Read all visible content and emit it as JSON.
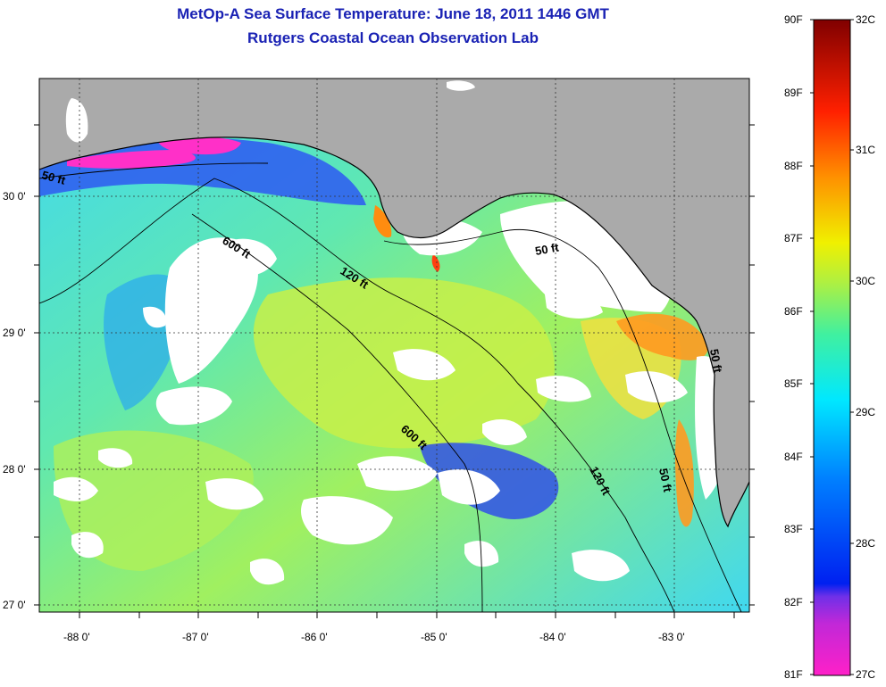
{
  "header": {
    "title": "MetOp-A Sea Surface Temperature:  June 18, 2011 1446 GMT",
    "subtitle": "Rutgers Coastal Ocean Observation Lab"
  },
  "map": {
    "lat_ticks": [
      "30 0'",
      "29 0'",
      "28 0'",
      "27 0'"
    ],
    "lon_ticks": [
      "-88 0'",
      "-87 0'",
      "-86 0'",
      "-85 0'",
      "-84 0'",
      "-83 0'"
    ],
    "lon_range": [
      -88.33,
      -82.5
    ],
    "lat_range": [
      26.95,
      30.85
    ],
    "contour_labels": [
      "50 ft",
      "600 ft",
      "120 ft",
      "50 ft",
      "600 ft",
      "120 ft",
      "50 ft",
      "50 ft"
    ],
    "colors": {
      "land": "#aaaaaa",
      "cloud": "#ffffff",
      "dotted_grid": "#333333"
    }
  },
  "colorbar": {
    "f_labels": [
      "90F",
      "89F",
      "88F",
      "87F",
      "86F",
      "85F",
      "84F",
      "83F",
      "82F",
      "81F"
    ],
    "c_labels": [
      "32C",
      "31C",
      "30C",
      "29C",
      "28C",
      "27C"
    ],
    "colors": [
      "#ff20c8",
      "#a030e0",
      "#0020f0",
      "#0080ff",
      "#00e8ff",
      "#80ff80",
      "#f0f000",
      "#ff9000",
      "#ff2000",
      "#800000"
    ]
  }
}
